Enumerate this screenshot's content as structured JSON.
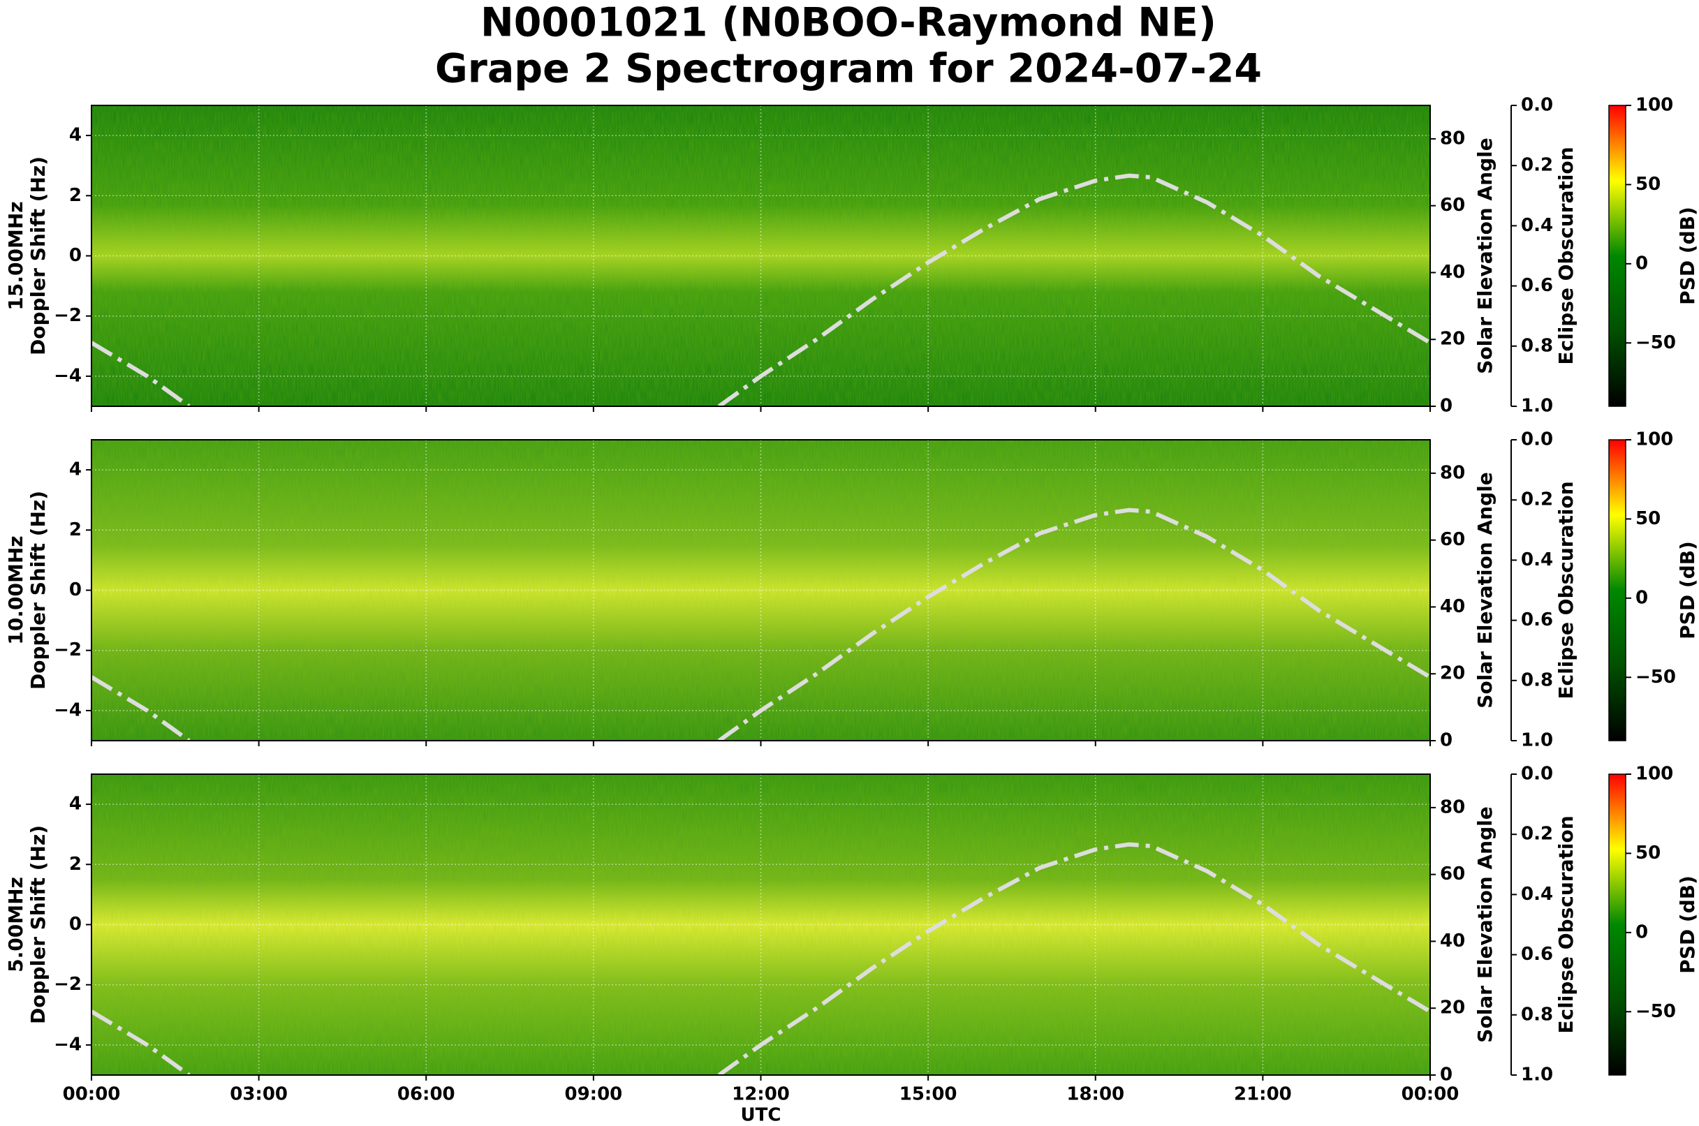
{
  "chart_data": [
    {
      "type": "line",
      "title": [
        "N0001021 (N0BOO-Raymond NE)",
        "Grape 2 Spectrogram for 2024-07-24"
      ],
      "ylabel": [
        "15.00MHz",
        "Doppler Shift (Hz)"
      ],
      "xlim": [
        0,
        24
      ],
      "ylim": [
        -5,
        5
      ],
      "yticks": [
        {
          "value": -4,
          "label": "−4"
        },
        {
          "value": -2,
          "label": "−2"
        },
        0,
        2,
        4
      ],
      "y2label": "Solar Elevation Angle",
      "y2lim": [
        0,
        90
      ],
      "y2ticks": [
        0,
        20,
        40,
        60,
        80
      ],
      "y3label": "Eclipse Obscuration",
      "y3lim": [
        1,
        0
      ],
      "y3ticks": [
        {
          "value": 0,
          "label": "0.0"
        },
        {
          "value": 0.2,
          "label": "0.2"
        },
        {
          "value": 0.4,
          "label": "0.4"
        },
        {
          "value": 0.6,
          "label": "0.6"
        },
        {
          "value": 0.8,
          "label": "0.8"
        },
        {
          "value": 1,
          "label": "1.0"
        }
      ],
      "colorbar": {
        "label": "PSD (dB)",
        "lim": [
          -90,
          100
        ],
        "ticks": [
          {
            "value": -50,
            "label": "−50"
          },
          0,
          50,
          100
        ],
        "colors": [
          "#000000",
          "#005000",
          "#008800",
          "#ffff00",
          "#ff0000"
        ]
      },
      "grid": true,
      "series": [
        {
          "color": "#dddddd",
          "axis": "y2",
          "x": [
            0,
            1,
            1.75,
            null,
            11.25,
            12,
            13,
            14,
            15,
            16,
            17,
            18,
            18.6,
            19,
            20,
            21,
            22,
            23,
            24
          ],
          "values": [
            19,
            9,
            0,
            null,
            0,
            9,
            20,
            32,
            43,
            53,
            62,
            67.5,
            69,
            68.5,
            61,
            51,
            39,
            29,
            19
          ]
        }
      ]
    },
    {
      "type": "line",
      "ylabel": [
        "10.00MHz",
        "Doppler Shift (Hz)"
      ],
      "xlim": [
        0,
        24
      ],
      "ylim": [
        -5,
        5
      ],
      "yticks": [
        {
          "value": -4,
          "label": "−4"
        },
        {
          "value": -2,
          "label": "−2"
        },
        0,
        2,
        4
      ],
      "y2label": "Solar Elevation Angle",
      "y2lim": [
        0,
        90
      ],
      "y2ticks": [
        0,
        20,
        40,
        60,
        80
      ],
      "y3label": "Eclipse Obscuration",
      "y3lim": [
        1,
        0
      ],
      "y3ticks": [
        {
          "value": 0,
          "label": "0.0"
        },
        {
          "value": 0.2,
          "label": "0.2"
        },
        {
          "value": 0.4,
          "label": "0.4"
        },
        {
          "value": 0.6,
          "label": "0.6"
        },
        {
          "value": 0.8,
          "label": "0.8"
        },
        {
          "value": 1,
          "label": "1.0"
        }
      ],
      "colorbar": {
        "label": "PSD (dB)",
        "lim": [
          -90,
          100
        ],
        "ticks": [
          {
            "value": -50,
            "label": "−50"
          },
          0,
          50,
          100
        ],
        "colors": [
          "#000000",
          "#005000",
          "#008800",
          "#ffff00",
          "#ff0000"
        ]
      },
      "grid": true,
      "series": [
        {
          "color": "#dddddd",
          "axis": "y2",
          "x": [
            0,
            1,
            1.75,
            null,
            11.25,
            12,
            13,
            14,
            15,
            16,
            17,
            18,
            18.6,
            19,
            20,
            21,
            22,
            23,
            24
          ],
          "values": [
            19,
            9,
            0,
            null,
            0,
            9,
            20,
            32,
            43,
            53,
            62,
            67.5,
            69,
            68.5,
            61,
            51,
            39,
            29,
            19
          ]
        }
      ]
    },
    {
      "type": "line",
      "ylabel": [
        "5.00MHz",
        "Doppler Shift (Hz)"
      ],
      "xlabel": "UTC",
      "xlim": [
        0,
        24
      ],
      "ylim": [
        -5,
        5
      ],
      "xticks": [
        {
          "value": 0,
          "label": "00:00"
        },
        {
          "value": 3,
          "label": "03:00"
        },
        {
          "value": 6,
          "label": "06:00"
        },
        {
          "value": 9,
          "label": "09:00"
        },
        {
          "value": 12,
          "label": "12:00"
        },
        {
          "value": 15,
          "label": "15:00"
        },
        {
          "value": 18,
          "label": "18:00"
        },
        {
          "value": 21,
          "label": "21:00"
        },
        {
          "value": 24,
          "label": "00:00"
        }
      ],
      "yticks": [
        {
          "value": -4,
          "label": "−4"
        },
        {
          "value": -2,
          "label": "−2"
        },
        0,
        2,
        4
      ],
      "y2label": "Solar Elevation Angle",
      "y2lim": [
        0,
        90
      ],
      "y2ticks": [
        0,
        20,
        40,
        60,
        80
      ],
      "y3label": "Eclipse Obscuration",
      "y3lim": [
        1,
        0
      ],
      "y3ticks": [
        {
          "value": 0,
          "label": "0.0"
        },
        {
          "value": 0.2,
          "label": "0.2"
        },
        {
          "value": 0.4,
          "label": "0.4"
        },
        {
          "value": 0.6,
          "label": "0.6"
        },
        {
          "value": 0.8,
          "label": "0.8"
        },
        {
          "value": 1,
          "label": "1.0"
        }
      ],
      "colorbar": {
        "label": "PSD (dB)",
        "lim": [
          -90,
          100
        ],
        "ticks": [
          {
            "value": -50,
            "label": "−50"
          },
          0,
          50,
          100
        ],
        "colors": [
          "#000000",
          "#005000",
          "#008800",
          "#ffff00",
          "#ff0000"
        ]
      },
      "grid": true,
      "series": [
        {
          "color": "#dddddd",
          "axis": "y2",
          "x": [
            0,
            1,
            1.75,
            null,
            11.25,
            12,
            13,
            14,
            15,
            16,
            17,
            18,
            18.6,
            19,
            20,
            21,
            22,
            23,
            24
          ],
          "values": [
            19,
            9,
            0,
            null,
            0,
            9,
            20,
            32,
            43,
            53,
            62,
            67.5,
            69,
            68.5,
            61,
            51,
            39,
            29,
            19
          ]
        }
      ]
    }
  ]
}
